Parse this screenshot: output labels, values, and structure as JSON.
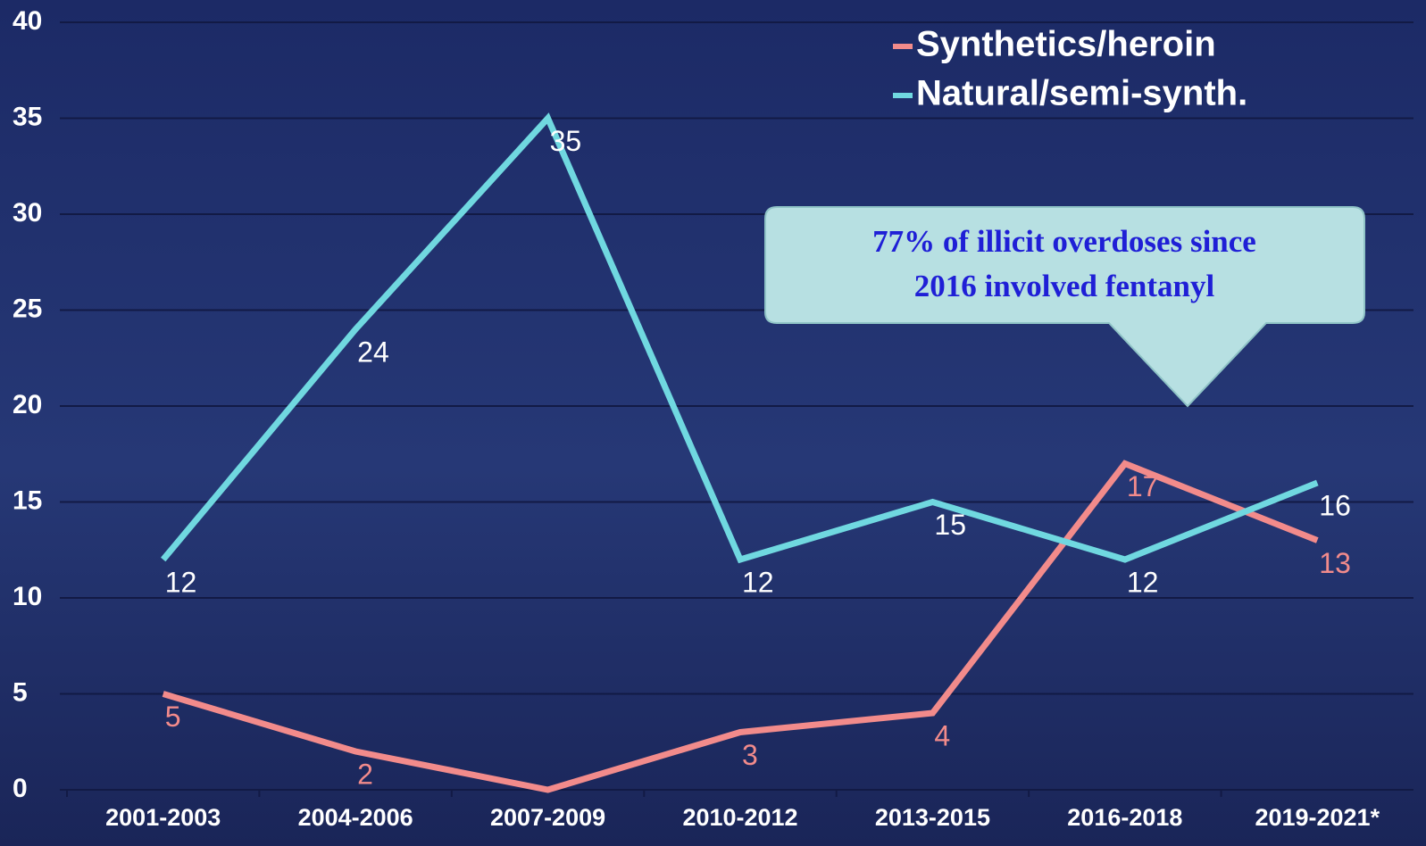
{
  "chart_data": {
    "type": "line",
    "categories": [
      "2001-2003",
      "2004-2006",
      "2007-2009",
      "2010-2012",
      "2013-2015",
      "2016-2018",
      "2019-2021*"
    ],
    "series": [
      {
        "name": "Synthetics/heroin",
        "color": "#f28b8b",
        "values": [
          5,
          2,
          0,
          3,
          4,
          17,
          13
        ],
        "value_labels": [
          "5",
          "2",
          null,
          "3",
          "4",
          "17",
          "13"
        ]
      },
      {
        "name": "Natural/semi-synth.",
        "color": "#70d8e0",
        "values": [
          12,
          24,
          35,
          12,
          15,
          12,
          16
        ]
      }
    ],
    "ylim": [
      0,
      40
    ],
    "yticks": [
      0,
      5,
      10,
      15,
      20,
      25,
      30,
      35,
      40
    ],
    "grid": true,
    "legend": "top-right",
    "annotation": [
      "77% of illicit overdoses since",
      "2016 involved fentanyl"
    ]
  }
}
